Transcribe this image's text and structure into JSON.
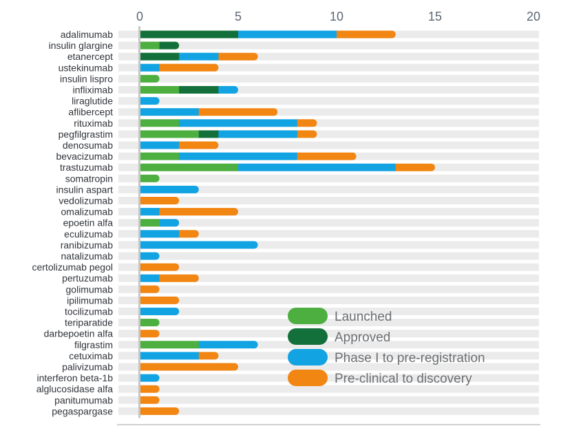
{
  "chart_data": {
    "type": "bar",
    "stacked": true,
    "orientation": "horizontal",
    "title": "",
    "xlabel": "",
    "ylabel": "",
    "xlim": [
      0,
      20
    ],
    "x_ticks": [
      "0",
      "5",
      "10",
      "15",
      "20"
    ],
    "legend_position": "bottom-right",
    "categories": [
      "adalimumab",
      "insulin glargine",
      "etanercept",
      "ustekinumab",
      "insulin lispro",
      "infliximab",
      "liraglutide",
      "aflibercept",
      "rituximab",
      "pegfilgrastim",
      "denosumab",
      "bevacizumab",
      "trastuzumab",
      "somatropin",
      "insulin aspart",
      "vedolizumab",
      "omalizumab",
      "epoetin alfa",
      "eculizumab",
      "ranibizumab",
      "natalizumab",
      "certolizumab pegol",
      "pertuzumab",
      "golimumab",
      "ipilimumab",
      "tocilizumab",
      "teriparatide",
      "darbepoetin alfa",
      "filgrastim",
      "cetuximab",
      "palivizumab",
      "interferon beta-1b",
      "alglucosidase alfa",
      "panitumumab",
      "pegaspargase"
    ],
    "series": [
      {
        "name": "Launched",
        "color": "#4caf3f",
        "values": [
          0,
          1,
          0,
          0,
          1,
          2,
          0,
          0,
          2,
          3,
          0,
          2,
          5,
          1,
          0,
          0,
          0,
          1,
          0,
          0,
          0,
          0,
          0,
          0,
          0,
          0,
          1,
          0,
          3,
          0,
          0,
          0,
          0,
          0,
          0
        ]
      },
      {
        "name": "Approved",
        "color": "#14703a",
        "values": [
          5,
          1,
          2,
          0,
          0,
          2,
          0,
          0,
          0,
          1,
          0,
          0,
          0,
          0,
          0,
          0,
          0,
          0,
          0,
          0,
          0,
          0,
          0,
          0,
          0,
          0,
          0,
          0,
          0,
          0,
          0,
          0,
          0,
          0,
          0
        ]
      },
      {
        "name": "Phase I to pre-registration",
        "color": "#12a3e3",
        "values": [
          5,
          0,
          2,
          1,
          0,
          1,
          1,
          3,
          6,
          4,
          2,
          6,
          8,
          0,
          3,
          0,
          1,
          1,
          2,
          6,
          1,
          0,
          1,
          0,
          0,
          2,
          0,
          0,
          3,
          3,
          0,
          1,
          0,
          0,
          0
        ]
      },
      {
        "name": "Pre-clinical to discovery",
        "color": "#f28613",
        "values": [
          3,
          0,
          2,
          3,
          0,
          0,
          0,
          4,
          1,
          1,
          2,
          3,
          2,
          0,
          0,
          2,
          4,
          0,
          1,
          0,
          0,
          2,
          2,
          1,
          2,
          0,
          0,
          1,
          0,
          1,
          5,
          0,
          1,
          1,
          2
        ]
      }
    ]
  }
}
